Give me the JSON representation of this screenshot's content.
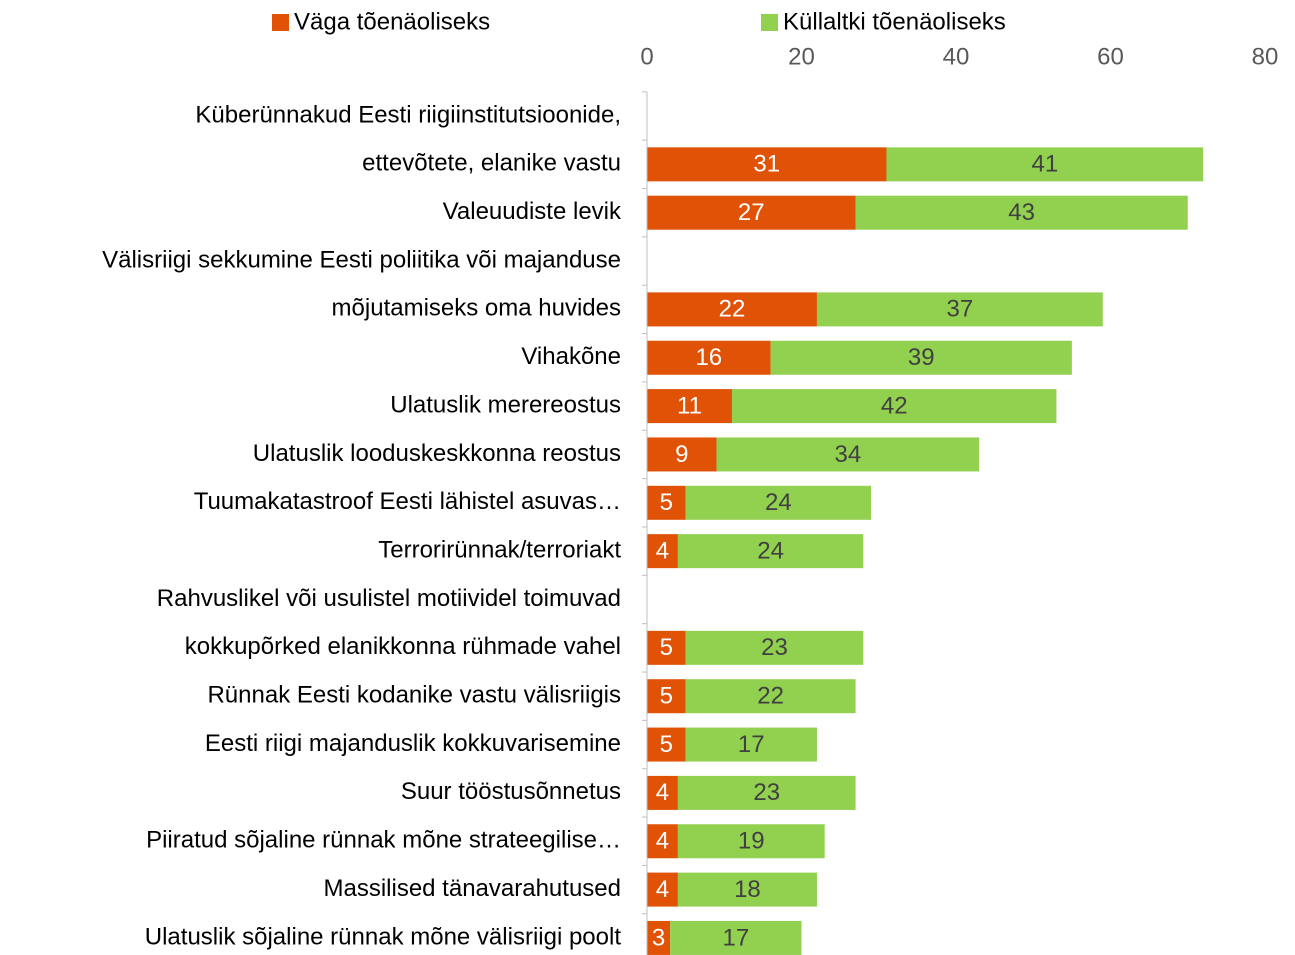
{
  "chart_data": {
    "type": "stacked_barh",
    "categories": [
      [
        "Küberünnakud Eesti riigiinstitutsioonide,",
        "ettevõtete, elanike vastu"
      ],
      [
        "Valeuudiste levik"
      ],
      [
        "Välisriigi sekkumine Eesti poliitika või majanduse",
        "mõjutamiseks oma huvides"
      ],
      [
        "Vihakõne"
      ],
      [
        "Ulatuslik merereostus"
      ],
      [
        "Ulatuslik looduskeskkonna reostus"
      ],
      [
        "Tuumakatastroof Eesti lähistel asuvas…"
      ],
      [
        "Terrorirünnak/terroriakt"
      ],
      [
        "Rahvuslikel või usulistel motiividel toimuvad",
        "kokkupõrked elanikkonna rühmade vahel"
      ],
      [
        "Rünnak Eesti kodanike vastu välisriigis"
      ],
      [
        "Eesti riigi majanduslik kokkuvarisemine"
      ],
      [
        "Suur tööstusõnnetus"
      ],
      [
        "Piiratud sõjaline rünnak mõne strateegilise…"
      ],
      [
        "Massilised tänavarahutused"
      ],
      [
        "Ulatuslik sõjaline rünnak mõne välisriigi poolt"
      ]
    ],
    "series": [
      {
        "name": "Väga tõenäoliseks",
        "color": "#E05206",
        "label_color": "#ffffff",
        "values": [
          31,
          27,
          22,
          16,
          11,
          9,
          5,
          4,
          5,
          5,
          5,
          4,
          4,
          4,
          3
        ]
      },
      {
        "name": "Küllaltki tõenäoliseks",
        "color": "#92D050",
        "label_color": "#404040",
        "values": [
          41,
          43,
          37,
          39,
          42,
          34,
          24,
          24,
          23,
          22,
          17,
          23,
          19,
          18,
          17
        ]
      }
    ],
    "xlim": [
      0,
      80
    ],
    "xticks": [
      0,
      20,
      40,
      60,
      80
    ]
  }
}
